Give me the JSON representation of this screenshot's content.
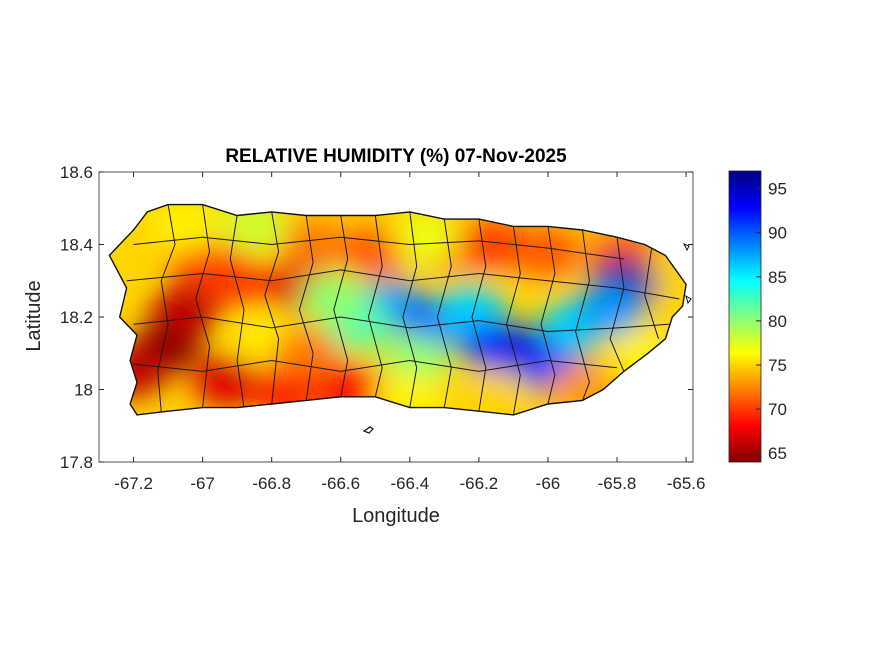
{
  "chart_data": {
    "type": "heatmap",
    "title": "RELATIVE HUMIDITY (%) 07-Nov-2025",
    "xlabel": "Longitude",
    "ylabel": "Latitude",
    "xlim": [
      -67.3,
      -65.58
    ],
    "ylim": [
      17.8,
      18.6
    ],
    "xticks": [
      -67.2,
      -67,
      -66.8,
      -66.6,
      -66.4,
      -66.2,
      -66,
      -65.8,
      -65.6
    ],
    "xtick_labels": [
      "-67.2",
      "-67",
      "-66.8",
      "-66.6",
      "-66.4",
      "-66.2",
      "-66",
      "-65.8",
      "-65.6"
    ],
    "yticks": [
      17.8,
      18,
      18.2,
      18.4,
      18.6
    ],
    "ytick_labels": [
      "17.8",
      "18",
      "18.2",
      "18.4",
      "18.6"
    ],
    "colorbar": {
      "range": [
        64,
        97
      ],
      "ticks": [
        65,
        70,
        75,
        80,
        85,
        90,
        95
      ],
      "tick_labels": [
        "65",
        "70",
        "75",
        "80",
        "85",
        "90",
        "95"
      ],
      "colormap": "jet"
    },
    "regions": [
      {
        "lon": -67.1,
        "lat": 18.12,
        "value": 64
      },
      {
        "lon": -67.2,
        "lat": 18.05,
        "value": 66
      },
      {
        "lon": -67.05,
        "lat": 18.22,
        "value": 66
      },
      {
        "lon": -66.93,
        "lat": 18.02,
        "value": 67
      },
      {
        "lon": -66.75,
        "lat": 18.0,
        "value": 68
      },
      {
        "lon": -66.58,
        "lat": 18.0,
        "value": 68
      },
      {
        "lon": -66.72,
        "lat": 18.28,
        "value": 67
      },
      {
        "lon": -66.9,
        "lat": 18.3,
        "value": 70
      },
      {
        "lon": -67.0,
        "lat": 18.35,
        "value": 70
      },
      {
        "lon": -66.68,
        "lat": 18.4,
        "value": 72
      },
      {
        "lon": -66.5,
        "lat": 18.38,
        "value": 71
      },
      {
        "lon": -66.28,
        "lat": 18.4,
        "value": 70
      },
      {
        "lon": -66.15,
        "lat": 18.4,
        "value": 70
      },
      {
        "lon": -66.0,
        "lat": 18.38,
        "value": 71
      },
      {
        "lon": -65.78,
        "lat": 18.37,
        "value": 71
      },
      {
        "lon": -65.65,
        "lat": 18.3,
        "value": 75
      },
      {
        "lon": -67.2,
        "lat": 18.4,
        "value": 75
      },
      {
        "lon": -67.05,
        "lat": 18.45,
        "value": 76
      },
      {
        "lon": -66.85,
        "lat": 18.45,
        "value": 78
      },
      {
        "lon": -66.35,
        "lat": 18.42,
        "value": 77
      },
      {
        "lon": -66.45,
        "lat": 18.23,
        "value": 88
      },
      {
        "lon": -66.32,
        "lat": 18.18,
        "value": 90
      },
      {
        "lon": -66.22,
        "lat": 18.22,
        "value": 86
      },
      {
        "lon": -66.15,
        "lat": 18.12,
        "value": 91
      },
      {
        "lon": -66.05,
        "lat": 18.1,
        "value": 94
      },
      {
        "lon": -65.98,
        "lat": 18.06,
        "value": 91
      },
      {
        "lon": -65.92,
        "lat": 18.18,
        "value": 86
      },
      {
        "lon": -65.78,
        "lat": 18.29,
        "value": 96
      },
      {
        "lon": -65.82,
        "lat": 18.22,
        "value": 88
      },
      {
        "lon": -66.38,
        "lat": 18.08,
        "value": 80
      },
      {
        "lon": -66.55,
        "lat": 18.18,
        "value": 82
      },
      {
        "lon": -66.62,
        "lat": 18.25,
        "value": 80
      },
      {
        "lon": -66.8,
        "lat": 18.14,
        "value": 76
      },
      {
        "lon": -66.4,
        "lat": 17.98,
        "value": 76
      },
      {
        "lon": -66.15,
        "lat": 17.98,
        "value": 75
      },
      {
        "lon": -65.9,
        "lat": 18.0,
        "value": 73
      },
      {
        "lon": -65.72,
        "lat": 18.1,
        "value": 76
      },
      {
        "lon": -66.7,
        "lat": 18.1,
        "value": 72
      }
    ]
  }
}
